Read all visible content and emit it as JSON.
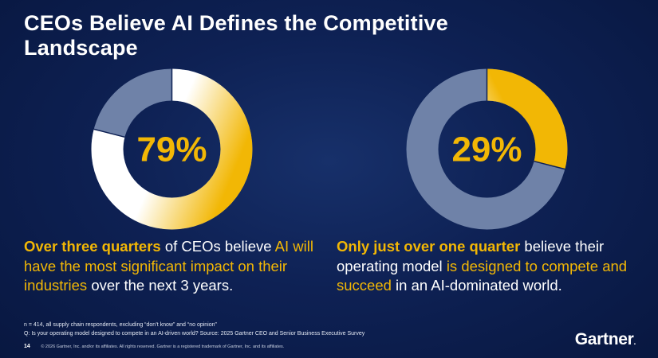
{
  "title": "CEOs Believe AI Defines the Competitive Landscape",
  "colors": {
    "background": "#0e2154",
    "accent": "#f2b705",
    "remainder": "#6f82a8",
    "ring_start": "#ffffff"
  },
  "chart_data": [
    {
      "type": "pie",
      "style": "donut",
      "center_label": "79%",
      "values": [
        79,
        21
      ],
      "slices": [
        "believe",
        "remainder"
      ],
      "caption": {
        "prefix_bold": "Over three quarters",
        "middle": " of CEOs believe ",
        "highlight": "AI will have the most significant impact on their industries",
        "suffix": " over the next 3 years."
      }
    },
    {
      "type": "pie",
      "style": "donut",
      "center_label": "29%",
      "values": [
        29,
        71
      ],
      "slices": [
        "believe",
        "remainder"
      ],
      "caption": {
        "prefix_bold": "Only just over one quarter",
        "middle": " believe their operating model ",
        "highlight": "is designed to compete and succeed",
        "suffix": " in an AI-dominated world."
      }
    }
  ],
  "footnote": {
    "line1": "n = 414, all supply chain respondents, excluding “don’t know” and “no opinion”",
    "line2": "Q: Is your operating model designed to compete in an AI-driven world? Source: 2025 Gartner CEO and Senior Business Executive Survey"
  },
  "page_number": "14",
  "copyright": "© 2026 Gartner, Inc. and/or its affiliates. All rights reserved. Gartner is a registered trademark of Gartner, Inc. and its affiliates.",
  "logo": {
    "text": "Gartner",
    "mark": "."
  }
}
